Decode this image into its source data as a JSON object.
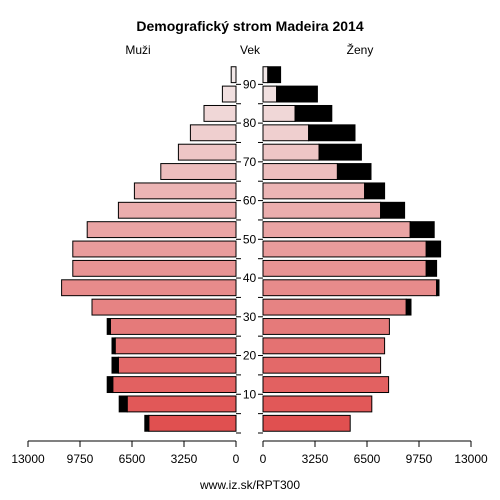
{
  "chart_data": {
    "type": "bar",
    "subtype": "population-pyramid",
    "title": "Demografický strom Madeira 2014",
    "left_label": "Muži",
    "center_label": "Vek",
    "right_label": "Ženy",
    "source": "www.iz.sk/RPT300",
    "x_ticks_left": [
      "13000",
      "9750",
      "6500",
      "3250",
      "0"
    ],
    "x_ticks_right": [
      "0",
      "3250",
      "6500",
      "9750",
      "13000"
    ],
    "x_max": 13000,
    "age_tick_labels": [
      "10",
      "20",
      "30",
      "40",
      "50",
      "60",
      "70",
      "80",
      "90"
    ],
    "age_groups": [
      "0-4",
      "5-9",
      "10-14",
      "15-19",
      "20-24",
      "25-29",
      "30-34",
      "35-39",
      "40-44",
      "45-49",
      "50-54",
      "55-59",
      "60-64",
      "65-69",
      "70-74",
      "75-79",
      "80-84",
      "85-89",
      "90+"
    ],
    "series": [
      {
        "name": "Muži",
        "base": [
          5450,
          6800,
          7700,
          7350,
          7550,
          7850,
          9000,
          10900,
          10200,
          10200,
          9300,
          7350,
          6350,
          4700,
          3600,
          2850,
          2000,
          850,
          300
        ],
        "surplus": [
          250,
          500,
          350,
          400,
          200,
          200,
          0,
          0,
          0,
          0,
          0,
          0,
          0,
          0,
          0,
          0,
          0,
          0,
          0
        ]
      },
      {
        "name": "Ženy",
        "base": [
          5450,
          6800,
          7850,
          7350,
          7600,
          7900,
          8950,
          10850,
          10200,
          10200,
          9200,
          7350,
          6350,
          4650,
          3500,
          2850,
          2000,
          850,
          300
        ],
        "surplus": [
          0,
          0,
          0,
          0,
          0,
          0,
          300,
          150,
          650,
          900,
          1500,
          1500,
          1250,
          2100,
          2650,
          2900,
          2300,
          2550,
          800
        ]
      }
    ],
    "colors": {
      "outline": "#000000",
      "surplus": "#000000",
      "young": "#e05050",
      "old": "#f2e8e8"
    }
  }
}
